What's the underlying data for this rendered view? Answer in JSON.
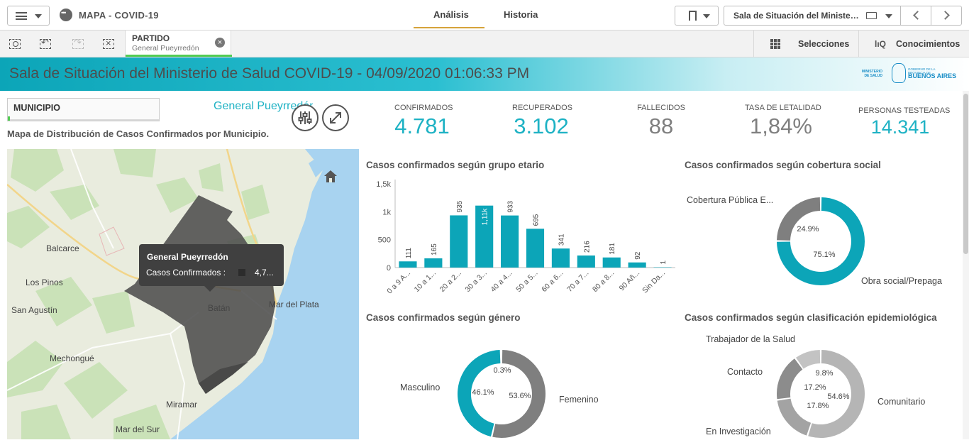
{
  "topbar": {
    "app_title": "MAPA - COVID-19",
    "tabs": [
      {
        "label": "Análisis",
        "active": true
      },
      {
        "label": "Historia",
        "active": false
      }
    ],
    "sheet_name": "Sala de Situación del Ministerio de Salud COVID-19",
    "accent": "#d6a33a"
  },
  "toolbar": {
    "selection": {
      "field": "PARTIDO",
      "value": "General Pueyrredón"
    },
    "selections_label": "Selecciones",
    "insights_label": "Conocimientos"
  },
  "banner": {
    "title": "Sala de Situación del Ministerio de Salud COVID-19 - 04/09/2020 01:06:33 PM",
    "logo_left": "MINISTERIO DE SALUD",
    "logo_right_small": "GOBIERNO DE LA PROVINCIA DE",
    "logo_right": "BUENOS AIRES"
  },
  "filter": {
    "label": "MUNICIPIO",
    "selected": "General Pueyrredón"
  },
  "map": {
    "title": "Mapa de Distribución de Casos Confirmados por Municipio.",
    "labels": [
      "Balcarce",
      "Los Pinos",
      "San Agustín",
      "Mechongué",
      "Batán",
      "Mar del Plata",
      "Miramar",
      "Mar del Sur"
    ],
    "tooltip": {
      "title": "General Pueyrredón",
      "key": "Casos Confirmados :",
      "value": "4,7..."
    }
  },
  "kpis": [
    {
      "label": "CONFIRMADOS",
      "value": "4.781",
      "color": "#1eb2c4"
    },
    {
      "label": "RECUPERADOS",
      "value": "3.102",
      "color": "#1eb2c4"
    },
    {
      "label": "FALLECIDOS",
      "value": "88",
      "color": "#7f7f7f"
    },
    {
      "label": "TASA DE LETALIDAD",
      "value": "1,84%",
      "color": "#7f7f7f"
    },
    {
      "label": "PERSONAS TESTEADAS",
      "value": "14.341",
      "color": "#1eb2c4"
    }
  ],
  "chart_data": [
    {
      "type": "bar",
      "title": "Casos confirmados según grupo etario",
      "categories": [
        "0 a 9 A...",
        "10 a 1...",
        "20 a 2...",
        "30 a 3...",
        "40 a 4...",
        "50 a 5...",
        "60 a 6...",
        "70 a 7...",
        "80 a 8...",
        "90 Añ...",
        "Sin Da..."
      ],
      "values": [
        111,
        165,
        935,
        1110,
        933,
        695,
        341,
        216,
        181,
        92,
        1
      ],
      "data_labels": [
        "111",
        "165",
        "935",
        "1,11k",
        "933",
        "695",
        "341",
        "216",
        "181",
        "92",
        "1"
      ],
      "yticks": [
        "0",
        "500",
        "1k",
        "1,5k"
      ],
      "ylim": [
        0,
        1500
      ],
      "color": "#0ca5b8"
    },
    {
      "type": "pie",
      "title": "Casos confirmados según cobertura social",
      "series": [
        {
          "name": "Obra social/Prepaga",
          "value": 75.1,
          "label": "75.1%",
          "color": "#0ca5b8"
        },
        {
          "name": "Cobertura Pública E...",
          "value": 24.9,
          "label": "24.9%",
          "color": "#7f7f7f"
        }
      ]
    },
    {
      "type": "pie",
      "title": "Casos confirmados según género",
      "series": [
        {
          "name": "Femenino",
          "value": 53.6,
          "label": "53.6%",
          "color": "#7f7f7f"
        },
        {
          "name": "Masculino",
          "value": 46.1,
          "label": "46.1%",
          "color": "#0ca5b8"
        },
        {
          "name": "",
          "value": 0.3,
          "label": "0.3%",
          "color": "#bdbdbd"
        }
      ]
    },
    {
      "type": "pie",
      "title": "Casos confirmados según clasificación epidemiológica",
      "series": [
        {
          "name": "Comunitario",
          "value": 54.6,
          "label": "54.6%",
          "color": "#b5b5b5"
        },
        {
          "name": "En Investigación",
          "value": 17.8,
          "label": "17.8%",
          "color": "#a3a3a3"
        },
        {
          "name": "Contacto",
          "value": 17.2,
          "label": "17.2%",
          "color": "#8c8c8c"
        },
        {
          "name": "Trabajador de la Salud",
          "value": 9.8,
          "label": "9.8%",
          "color": "#c3c3c3"
        }
      ]
    }
  ]
}
